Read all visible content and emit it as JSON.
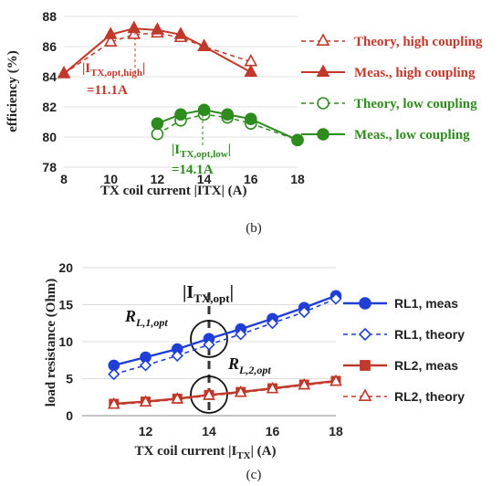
{
  "chart_data": [
    {
      "type": "line",
      "panel_label": "(b)",
      "xlabel": "TX coil current |ITX| (A)",
      "ylabel": "efficiency (%)",
      "xlim": [
        8,
        18
      ],
      "ylim": [
        78,
        88
      ],
      "xticks": [
        "8",
        "10",
        "12",
        "14",
        "16",
        "18"
      ],
      "yticks": [
        "78",
        "80",
        "82",
        "84",
        "86",
        "88"
      ],
      "legend_position": "right",
      "series": [
        {
          "name": "Theory, high coupling",
          "x": [
            8,
            10,
            11,
            12,
            13,
            14,
            16
          ],
          "y": [
            84.2,
            86.3,
            86.8,
            86.9,
            86.6,
            86.0,
            85.0
          ],
          "color": "#c0392b",
          "dashed": true,
          "marker": "triangle-open"
        },
        {
          "name": "Meas.,  high coupling",
          "x": [
            8,
            10,
            11,
            12,
            13,
            14,
            16
          ],
          "y": [
            84.2,
            86.8,
            87.2,
            87.1,
            86.8,
            86.0,
            84.3
          ],
          "color": "#c0392b",
          "dashed": false,
          "marker": "triangle-filled"
        },
        {
          "name": "Theory, low coupling",
          "x": [
            12,
            13,
            14,
            15,
            16,
            18
          ],
          "y": [
            80.2,
            81.1,
            81.5,
            81.3,
            80.9,
            79.8
          ],
          "color": "#2e8b1e",
          "dashed": true,
          "marker": "circle-open"
        },
        {
          "name": "Meas.,  low coupling",
          "x": [
            12,
            13,
            14,
            15,
            16,
            18
          ],
          "y": [
            80.9,
            81.5,
            81.8,
            81.5,
            81.2,
            79.8
          ],
          "color": "#2e8b1e",
          "dashed": false,
          "marker": "circle-filled"
        }
      ],
      "annotations": [
        {
          "text_main": "|I",
          "text_sub": "TX,opt,high",
          "text_end": "|",
          "value": "=11.1A",
          "color": "#c0392b"
        },
        {
          "text_main": "|I",
          "text_sub": "TX,opt,low",
          "text_end": "|",
          "value": "=14.1A",
          "color": "#2e8b1e"
        }
      ]
    },
    {
      "type": "line",
      "panel_label": "(c)",
      "xlabel_main": "TX coil current |I",
      "xlabel_sub": "TX",
      "xlabel_end": "| (A)",
      "ylabel": "load resistance (Ohm)",
      "xlim": [
        10,
        18
      ],
      "ylim": [
        0,
        20
      ],
      "xticks": [
        "12",
        "14",
        "16",
        "18"
      ],
      "yticks": [
        "0",
        "5",
        "10",
        "15",
        "20"
      ],
      "legend_position": "right",
      "series": [
        {
          "name": "RL1, meas",
          "x": [
            11,
            12,
            13,
            14,
            15,
            16,
            17,
            18
          ],
          "y": [
            6.8,
            7.9,
            9.0,
            10.4,
            11.7,
            13.1,
            14.6,
            16.2
          ],
          "color": "#1f3fd6",
          "dashed": false,
          "marker": "circle-filled"
        },
        {
          "name": "RL1, theory",
          "x": [
            11,
            12,
            13,
            14,
            15,
            16,
            17,
            18
          ],
          "y": [
            5.6,
            6.8,
            8.1,
            9.6,
            11.0,
            12.5,
            14.0,
            15.8
          ],
          "color": "#1f3fd6",
          "dashed": true,
          "marker": "diamond-open"
        },
        {
          "name": "RL2, meas",
          "x": [
            11,
            12,
            13,
            14,
            15,
            16,
            17,
            18
          ],
          "y": [
            1.6,
            1.9,
            2.3,
            2.8,
            3.2,
            3.7,
            4.2,
            4.7
          ],
          "color": "#c0392b",
          "dashed": false,
          "marker": "square-filled"
        },
        {
          "name": "RL2, theory",
          "x": [
            11,
            12,
            13,
            14,
            15,
            16,
            17,
            18
          ],
          "y": [
            1.5,
            1.8,
            2.2,
            2.7,
            3.1,
            3.6,
            4.1,
            4.6
          ],
          "color": "#c0392b",
          "dashed": true,
          "marker": "triangle-open"
        }
      ],
      "annotations": [
        {
          "text_main": "|I",
          "text_sub": "TX,opt",
          "text_end": "|"
        },
        {
          "text_main": "R",
          "text_sub": "L,1,opt"
        },
        {
          "text_main": "R",
          "text_sub": "L,2,opt"
        }
      ]
    }
  ]
}
